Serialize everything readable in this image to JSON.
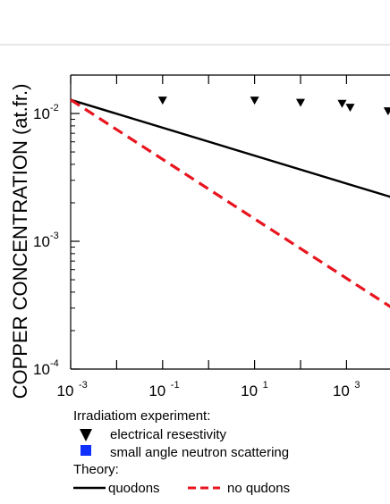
{
  "chart_data": {
    "type": "line",
    "title": "",
    "xlabel": "",
    "ylabel": "COPPER CONCENTRATION (at.fr.)",
    "xscale": "log",
    "yscale": "log",
    "xlim": [
      0.001,
      10000
    ],
    "ylim": [
      0.0001,
      0.02
    ],
    "x_ticks": [
      {
        "value": 0.001,
        "base": "10",
        "exp": "-3"
      },
      {
        "value": 0.1,
        "base": "10",
        "exp": "-1"
      },
      {
        "value": 10,
        "base": "10",
        "exp": "1"
      },
      {
        "value": 1000,
        "base": "10",
        "exp": "3"
      }
    ],
    "y_ticks": [
      {
        "value": 0.0001,
        "base": "10",
        "exp": "-4"
      },
      {
        "value": 0.001,
        "base": "10",
        "exp": "-3"
      },
      {
        "value": 0.01,
        "base": "10",
        "exp": "-2"
      }
    ],
    "series": [
      {
        "name": "electrical resestivity",
        "kind": "scatter",
        "marker": "triangle-down",
        "color": "#000000",
        "points": [
          [
            0.1,
            0.0125
          ],
          [
            10,
            0.0125
          ],
          [
            100,
            0.012
          ],
          [
            800,
            0.0118
          ],
          [
            1200,
            0.011
          ],
          [
            8000,
            0.0103
          ]
        ]
      },
      {
        "name": "small angle neutron scattering",
        "kind": "scatter",
        "marker": "square",
        "color": "#1030ff",
        "points": []
      },
      {
        "name": "quodons",
        "kind": "line",
        "style": "solid",
        "color": "#000000",
        "points": [
          [
            0.001,
            0.0128
          ],
          [
            10000,
            0.0022
          ]
        ]
      },
      {
        "name": "no qudons",
        "kind": "line",
        "style": "dashed",
        "color": "#e8141e",
        "points": [
          [
            0.001,
            0.0128
          ],
          [
            10000,
            0.0003
          ]
        ]
      }
    ],
    "legend": {
      "placement": "bottom-left",
      "header1": "Irradiatiom experiment:",
      "header2": "Theory:"
    }
  }
}
